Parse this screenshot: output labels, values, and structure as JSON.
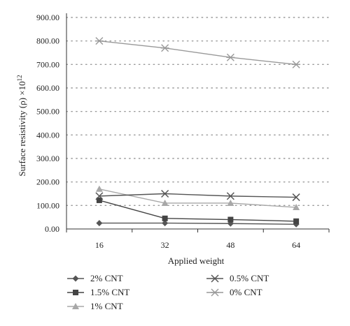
{
  "chart_data": {
    "type": "line",
    "categories": [
      "16",
      "32",
      "48",
      "64"
    ],
    "ylabel": "Surface resistivity (ρ) ×10",
    "ylabel_exponent": "12",
    "xlabel": "Applied weight",
    "ylim": [
      0,
      900
    ],
    "yticks": [
      0,
      100,
      200,
      300,
      400,
      500,
      600,
      700,
      800,
      900
    ],
    "ytick_labels": [
      "0.00",
      "100.00",
      "200.00",
      "300.00",
      "400.00",
      "500.00",
      "600.00",
      "700.00",
      "800.00",
      "900.00"
    ],
    "grid": "horizontal-dotted",
    "legend_placement": "bottom",
    "series": [
      {
        "name": "2% CNT",
        "marker": "diamond",
        "color": "#555555",
        "values": [
          25,
          25,
          23,
          20
        ]
      },
      {
        "name": "1.5% CNT",
        "marker": "square",
        "color": "#444444",
        "values": [
          122,
          45,
          40,
          33
        ]
      },
      {
        "name": "1% CNT",
        "marker": "triangle",
        "color": "#a8a8a8",
        "values": [
          170,
          110,
          110,
          92
        ]
      },
      {
        "name": "0.5% CNT",
        "marker": "x",
        "color": "#555555",
        "values": [
          140,
          150,
          140,
          135
        ]
      },
      {
        "name": "0% CNT",
        "marker": "asterisk",
        "color": "#999999",
        "values": [
          800,
          770,
          730,
          700
        ]
      }
    ]
  }
}
